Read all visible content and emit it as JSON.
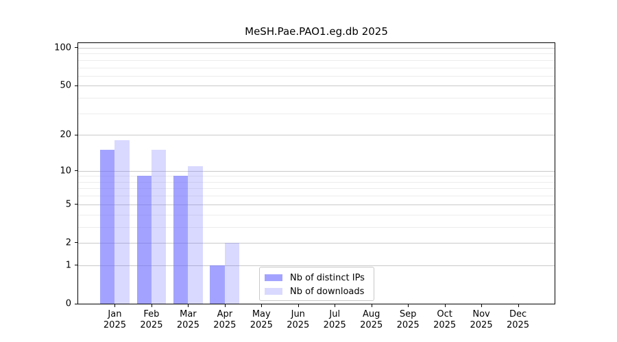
{
  "figure": {
    "title": "MeSH.Pae.PAO1.eg.db 2025"
  },
  "chart_data": {
    "type": "bar",
    "title": "MeSH.Pae.PAO1.eg.db 2025",
    "categories": [
      "Jan",
      "Feb",
      "Mar",
      "Apr",
      "May",
      "Jun",
      "Jul",
      "Aug",
      "Sep",
      "Oct",
      "Nov",
      "Dec"
    ],
    "category_year": "2025",
    "series": [
      {
        "name": "Nb of distinct IPs",
        "color": "rgba(102,102,255,0.6)",
        "values": [
          15,
          9,
          9,
          1,
          0,
          0,
          0,
          0,
          0,
          0,
          0,
          0
        ]
      },
      {
        "name": "Nb of downloads",
        "color": "rgba(102,102,255,0.25)",
        "values": [
          18,
          15,
          11,
          2,
          0,
          0,
          0,
          0,
          0,
          0,
          0,
          0
        ]
      }
    ],
    "xlabel": "",
    "ylabel": "",
    "yscale": "log10(value+1)",
    "y_major_ticks": [
      0,
      1,
      2,
      5,
      10,
      20,
      50,
      100
    ],
    "y_minor_gridlines": [
      3,
      4,
      6,
      7,
      8,
      9,
      30,
      40,
      60,
      70,
      80,
      90
    ],
    "ylim": [
      0,
      109
    ],
    "grid": true,
    "legend_position": "lower center",
    "colors": {
      "major_grid": "#c9c9c9",
      "minor_grid": "#ececec",
      "axis": "#000000",
      "text": "#000000",
      "legend_border": "#c8c8c8"
    }
  }
}
